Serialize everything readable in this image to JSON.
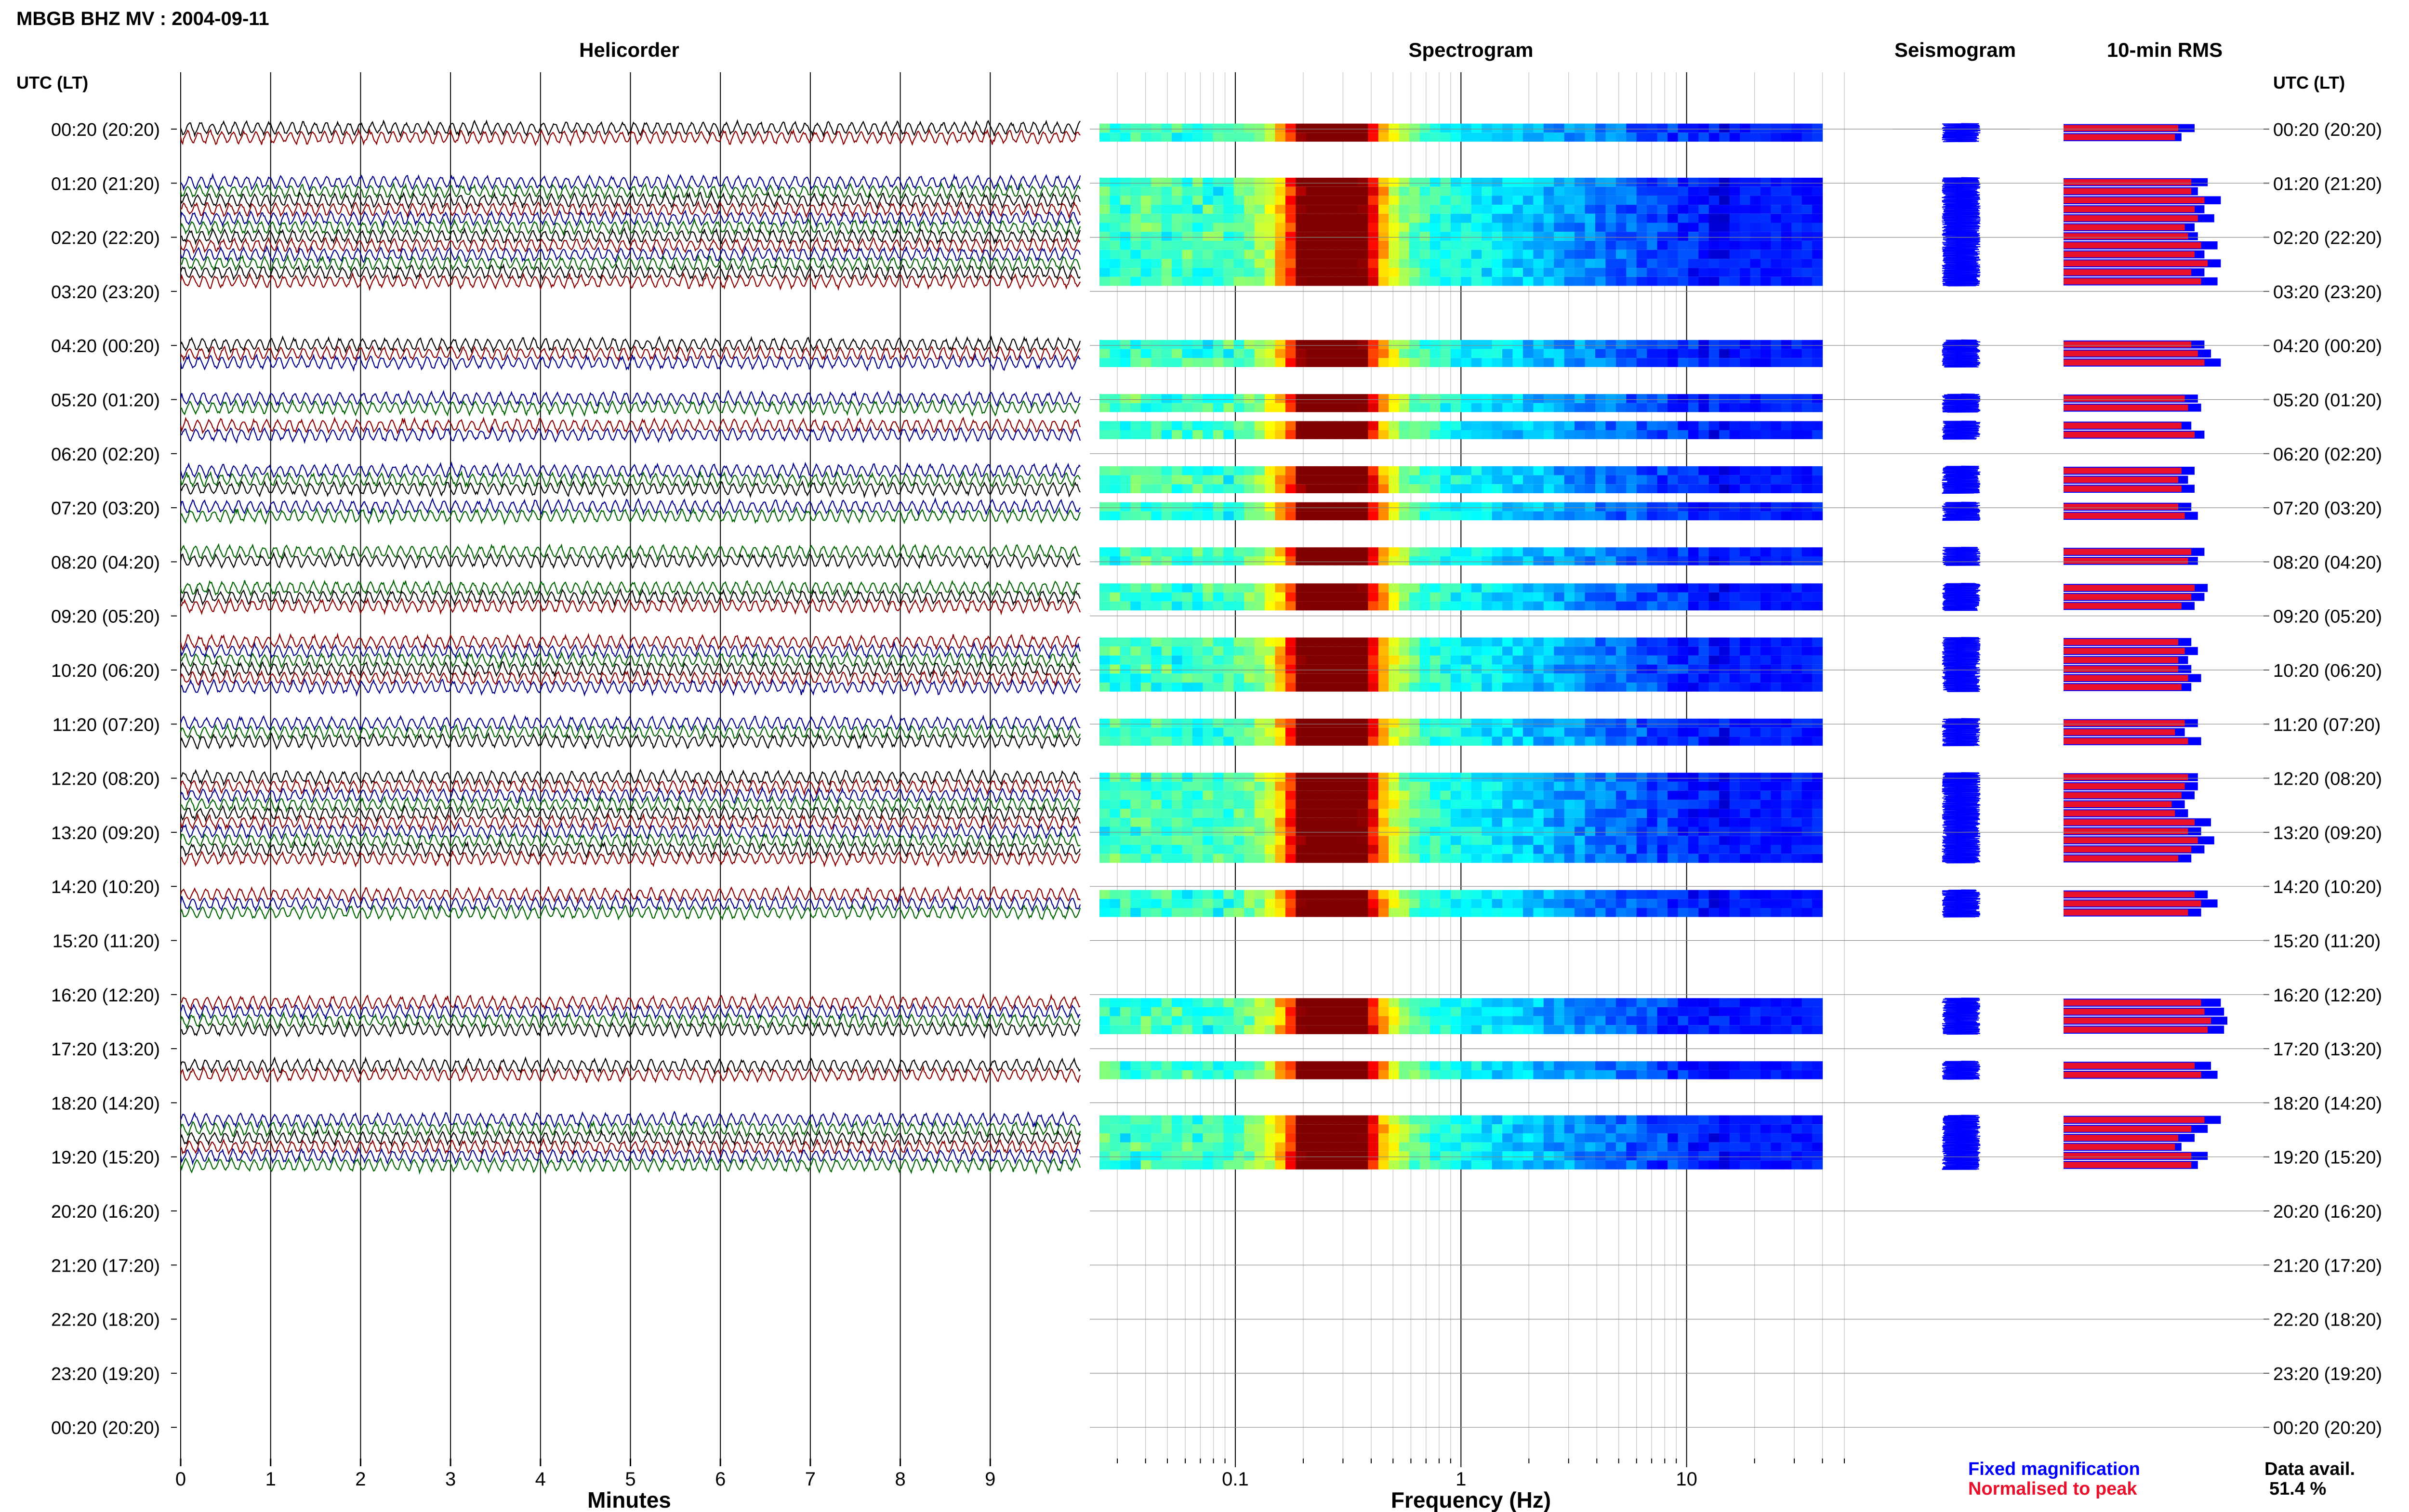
{
  "figure": {
    "title": "MBGB BHZ MV : 2004-09-11",
    "lt_header_left": "UTC (LT)",
    "lt_header_right": "UTC (LT)",
    "fixed_label": "Fixed magnification",
    "norm_label": "Normalised to peak",
    "data_avail_label": "Data avail.",
    "data_avail_value": "51.4 %"
  },
  "colors": {
    "trace_black": "#000000",
    "trace_red": "#8b0000",
    "trace_blue": "#00008b",
    "trace_green": "#006400",
    "seismogram": "#0000ff",
    "rms_fixed": "#0000ff",
    "rms_norm": "#e8102a"
  },
  "panels": {
    "helicorder": {
      "title": "Helicorder",
      "xlabel": "Minutes"
    },
    "spectrogram": {
      "title": "Spectrogram",
      "xlabel": "Frequency (Hz)"
    },
    "seismogram": {
      "title": "Seismogram"
    },
    "rms": {
      "title": "10-min RMS"
    }
  },
  "chart_data": [
    {
      "type": "line",
      "panel": "helicorder",
      "title": "Helicorder",
      "xlabel": "Minutes",
      "x_ticks": [
        "0",
        "1",
        "2",
        "3",
        "4",
        "5",
        "6",
        "7",
        "8",
        "9"
      ],
      "xlim": [
        0,
        10
      ],
      "hour_labels": [
        "00:20 (20:20)",
        "01:20 (21:20)",
        "02:20 (22:20)",
        "03:20 (23:20)",
        "04:20 (00:20)",
        "05:20 (01:20)",
        "06:20 (02:20)",
        "07:20 (03:20)",
        "08:20 (04:20)",
        "09:20 (05:20)",
        "10:20 (06:20)",
        "11:20 (07:20)",
        "12:20 (08:20)",
        "13:20 (09:20)",
        "14:20 (10:20)",
        "15:20 (11:20)",
        "16:20 (12:20)",
        "17:20 (13:20)",
        "18:20 (14:20)",
        "19:20 (15:20)",
        "20:20 (16:20)",
        "21:20 (17:20)",
        "22:20 (18:20)",
        "23:20 (19:20)",
        "00:20 (20:20)"
      ],
      "segments_with_data": [
        [
          0,
          1
        ],
        [
          6,
          7,
          8,
          9,
          10,
          11,
          12,
          13,
          14,
          15,
          16,
          17
        ],
        [
          24,
          25,
          26
        ],
        [
          30,
          31
        ],
        [
          33,
          34
        ],
        [
          38,
          39,
          40
        ],
        [
          42,
          43
        ],
        [
          47,
          48
        ],
        [
          51,
          52,
          53
        ],
        [
          57,
          58,
          59,
          60,
          61,
          62
        ],
        [
          66,
          67,
          68
        ],
        [
          72,
          73,
          74,
          75,
          76,
          77,
          78,
          79,
          80,
          81
        ],
        [
          85,
          86,
          87
        ],
        [
          97,
          98,
          99,
          100
        ],
        [
          104,
          105
        ],
        [
          110,
          111,
          112,
          113,
          114,
          115
        ]
      ],
      "segment_minutes": 10,
      "trace_colors_cycle": [
        "black",
        "red",
        "blue",
        "green"
      ]
    },
    {
      "type": "heatmap",
      "panel": "spectrogram",
      "title": "Spectrogram",
      "xlabel": "Frequency (Hz)",
      "x_scale": "log",
      "xlim": [
        0.025,
        50
      ],
      "x_tick_labels": [
        "0.1",
        "1",
        "10"
      ],
      "peak_frequency_hz": 0.27
    },
    {
      "type": "bar",
      "panel": "rms",
      "title": "10-min RMS",
      "series": [
        {
          "name": "Fixed magnification"
        },
        {
          "name": "Normalised to peak"
        }
      ],
      "values_fixed": [
        0.8,
        0.72,
        0.88,
        0.82,
        0.96,
        0.86,
        0.92,
        0.8,
        0.82,
        0.94,
        0.86,
        0.96,
        0.86,
        0.94,
        0.86,
        0.9,
        0.96,
        0.82,
        0.84,
        0.78,
        0.86,
        0.8,
        0.76,
        0.8,
        0.78,
        0.82,
        0.86,
        0.82,
        0.88,
        0.86,
        0.8,
        0.78,
        0.82,
        0.76,
        0.78,
        0.84,
        0.78,
        0.82,
        0.74,
        0.84,
        0.82,
        0.82,
        0.8,
        0.74,
        0.76,
        0.9,
        0.84,
        0.92,
        0.86,
        0.78,
        0.88,
        0.94,
        0.84,
        0.96,
        0.98,
        1.0,
        0.98,
        0.9,
        0.94,
        0.96,
        0.88
      ],
      "values_norm": [
        0.7,
        0.68,
        0.78,
        0.78,
        0.86,
        0.8,
        0.82,
        0.74,
        0.76,
        0.84,
        0.8,
        0.88,
        0.78,
        0.84,
        0.78,
        0.82,
        0.86,
        0.74,
        0.76,
        0.72,
        0.8,
        0.72,
        0.7,
        0.72,
        0.7,
        0.74,
        0.78,
        0.76,
        0.8,
        0.78,
        0.72,
        0.7,
        0.74,
        0.7,
        0.7,
        0.76,
        0.72,
        0.74,
        0.68,
        0.76,
        0.76,
        0.74,
        0.72,
        0.66,
        0.68,
        0.8,
        0.76,
        0.82,
        0.78,
        0.7,
        0.8,
        0.84,
        0.76,
        0.84,
        0.86,
        0.9,
        0.88,
        0.8,
        0.84,
        0.86,
        0.78
      ]
    }
  ]
}
